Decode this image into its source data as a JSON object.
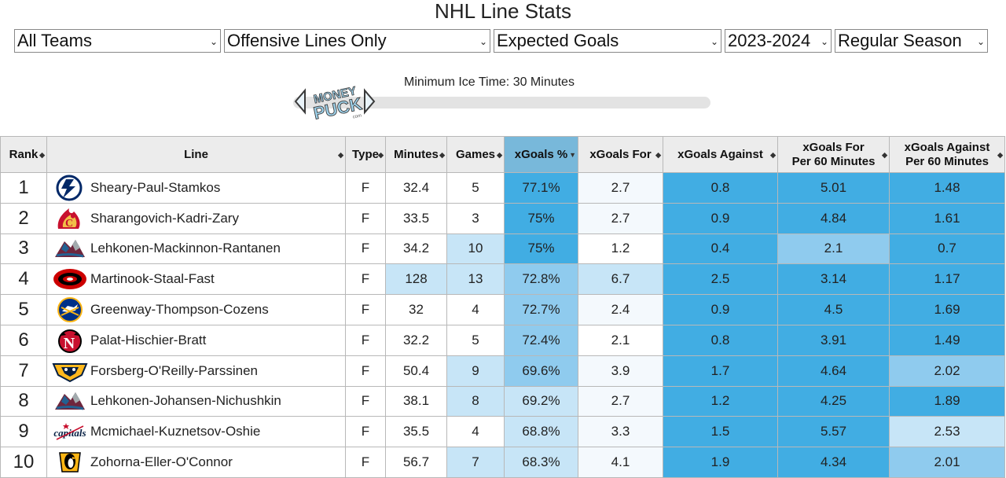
{
  "page": {
    "title": "NHL Line Stats"
  },
  "filters": {
    "team": "All Teams",
    "line_type": "Offensive Lines Only",
    "metric": "Expected Goals",
    "season": "2023-2024",
    "season_type": "Regular Season"
  },
  "ice_time": {
    "label": "Minimum Ice Time: 30 Minutes",
    "value_minutes": 30
  },
  "logo": {
    "line1": "MONEY",
    "line2": "PUCK",
    "sub": "com"
  },
  "colors": {
    "accent_dark": "#41ade3",
    "accent_mid": "#8fcbee",
    "accent_light": "#c7e5f7",
    "header_sorted": "#78b8da"
  },
  "table": {
    "headers": {
      "rank": "Rank",
      "line": "Line",
      "type": "Type",
      "minutes": "Minutes",
      "games": "Games",
      "xg_pct": "xGoals %",
      "xg_for": "xGoals For",
      "xg_against": "xGoals Against",
      "xgf60_1": "xGoals For",
      "xgf60_2": "Per 60 Minutes",
      "xga60_1": "xGoals Against",
      "xga60_2": "Per 60 Minutes"
    },
    "rows": [
      {
        "rank": "1",
        "team_icon": "lightning-logo-icon",
        "line": "Sheary-Paul-Stamkos",
        "type": "F",
        "minutes": "32.4",
        "games": "5",
        "xg_pct": "77.1%",
        "xg_for": "2.7",
        "xg_against": "0.8",
        "xgf60": "5.01",
        "xga60": "1.48"
      },
      {
        "rank": "2",
        "team_icon": "flames-logo-icon",
        "line": "Sharangovich-Kadri-Zary",
        "type": "F",
        "minutes": "33.5",
        "games": "3",
        "xg_pct": "75%",
        "xg_for": "2.7",
        "xg_against": "0.9",
        "xgf60": "4.84",
        "xga60": "1.61"
      },
      {
        "rank": "3",
        "team_icon": "avalanche-logo-icon",
        "line": "Lehkonen-Mackinnon-Rantanen",
        "type": "F",
        "minutes": "34.2",
        "games": "10",
        "xg_pct": "75%",
        "xg_for": "1.2",
        "xg_against": "0.4",
        "xgf60": "2.1",
        "xga60": "0.7"
      },
      {
        "rank": "4",
        "team_icon": "hurricanes-logo-icon",
        "line": "Martinook-Staal-Fast",
        "type": "F",
        "minutes": "128",
        "games": "13",
        "xg_pct": "72.8%",
        "xg_for": "6.7",
        "xg_against": "2.5",
        "xgf60": "3.14",
        "xga60": "1.17"
      },
      {
        "rank": "5",
        "team_icon": "sabres-logo-icon",
        "line": "Greenway-Thompson-Cozens",
        "type": "F",
        "minutes": "32",
        "games": "4",
        "xg_pct": "72.7%",
        "xg_for": "2.4",
        "xg_against": "0.9",
        "xgf60": "4.5",
        "xga60": "1.69"
      },
      {
        "rank": "6",
        "team_icon": "devils-logo-icon",
        "line": "Palat-Hischier-Bratt",
        "type": "F",
        "minutes": "32.2",
        "games": "5",
        "xg_pct": "72.4%",
        "xg_for": "2.1",
        "xg_against": "0.8",
        "xgf60": "3.91",
        "xga60": "1.49"
      },
      {
        "rank": "7",
        "team_icon": "predators-logo-icon",
        "line": "Forsberg-O'Reilly-Parssinen",
        "type": "F",
        "minutes": "50.4",
        "games": "9",
        "xg_pct": "69.6%",
        "xg_for": "3.9",
        "xg_against": "1.7",
        "xgf60": "4.64",
        "xga60": "2.02"
      },
      {
        "rank": "8",
        "team_icon": "avalanche-logo-icon",
        "line": "Lehkonen-Johansen-Nichushkin",
        "type": "F",
        "minutes": "38.1",
        "games": "8",
        "xg_pct": "69.2%",
        "xg_for": "2.7",
        "xg_against": "1.2",
        "xgf60": "4.25",
        "xga60": "1.89"
      },
      {
        "rank": "9",
        "team_icon": "capitals-logo-icon",
        "line": "Mcmichael-Kuznetsov-Oshie",
        "type": "F",
        "minutes": "35.5",
        "games": "4",
        "xg_pct": "68.8%",
        "xg_for": "3.3",
        "xg_against": "1.5",
        "xgf60": "5.57",
        "xga60": "2.53"
      },
      {
        "rank": "10",
        "team_icon": "penguins-logo-icon",
        "line": "Zohorna-Eller-O'Connor",
        "type": "F",
        "minutes": "56.7",
        "games": "7",
        "xg_pct": "68.3%",
        "xg_for": "4.1",
        "xg_against": "1.9",
        "xgf60": "4.34",
        "xga60": "2.01"
      }
    ]
  }
}
